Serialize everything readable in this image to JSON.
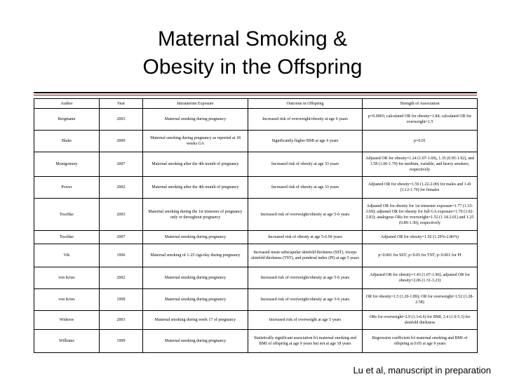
{
  "title": {
    "line1": "Maternal Smoking &",
    "line2": "Obesity in the Offspring"
  },
  "table": {
    "headers": [
      "Author",
      "Year",
      "Intrauterine Exposure",
      "Outcome in Offspring",
      "Strength of Association"
    ],
    "rows": [
      [
        "Bergmann",
        "2003",
        "Maternal smoking during pregnancy",
        "Increased risk of overweight/obesity at age 6 years",
        "p=0.0003; calculated OR for obesity=1.84; calculated OR for overweight=1.5"
      ],
      [
        "Blake",
        "2000",
        "Maternal smoking during pregnancy as reported at 18 weeks GA",
        "Significantly higher BMI at age 6 years",
        "p=0.01"
      ],
      [
        "Montgomery",
        "2007",
        "Maternal smoking after the 4th month of pregnancy",
        "Increased risk of obesity at age 33 years",
        "Adjusted OR for obesity=1.24 (1.07-1.69), 1.35 (0.95-1.92), and 1.58 (1.06-1.79) for medium, variable, and heavy smokers, respectively"
      ],
      [
        "Power",
        "2002",
        "Maternal smoking after the 4th month of pregnancy",
        "Increased risk of obesity at age 33 years",
        "Adjusted OR for obesity=1.56 (1.22-2.00) for males and 1.41 (1.12-1.79) for females"
      ],
      [
        "Toschke",
        "2003",
        "Maternal smoking during the 1st trimester of pregnancy only or throughout pregnancy",
        "Increased risk of overweight/obesity at age 5-6 years",
        "Adjusted OR for obesity for 1st trimester exposure=1.77 (1.33-3.69); adjusted OR for obesity for full GA exposure=1.70 (1.02-2.83); analogous ORs for overweight=1.52 (1.14-2.01) and 1.25 (0.89-1.30), respectively"
      ],
      [
        "Toschke",
        "2007",
        "Maternal smoking during pregnancy",
        "Increased risk of obesity at age 5-6.99 years",
        "Adjusted OR for obesity=1.92 (1.29%-2.86%)"
      ],
      [
        "Vik",
        "1996",
        "Maternal smoking of 1-25 cigs/day during pregnancy",
        "Increased mean subscapular skinfold thickness (SST), triceps skinfold thickness (TST), and ponderal index (PI) at age 5 years",
        "p<0.001 for SST; p<0.05 for TST; p<0.001 for PI"
      ],
      [
        "von Kries",
        "2002",
        "Maternal smoking during pregnancy",
        "Increased risk of overweight/obesity at age 5-6 years",
        "Adjusted OR for obesity=1.43 (1.07-1.90); adjusted OR for obesity=2.06 (1.31-3.23)"
      ],
      [
        "von Kries",
        "1999",
        "Maternal smoking during pregnancy",
        "Increased risk of overweight/obesity at age 5-6 years",
        "OR for obesity=1.5 (1.20-1.89); OR for overweight=1.52 (1.28-2.58)"
      ],
      [
        "Wideroe",
        "2003",
        "Maternal smoking during week 17 of pregnancy",
        "Increased risk of overweight at age 5 years",
        "ORs for overweight=2.9 (1.3-6.6) for BMI, 2.4 (1.0-5.3) for skinfold thickness"
      ],
      [
        "Williams",
        "1999",
        "Maternal smoking during pregnancy",
        "Statistically significant association b/t maternal smoking and BMI of offspring at age 9 years but not at age 18 years",
        "Regression coefficient b/t maternal smoking and BMI of offspring at 0.05 at age 9 years"
      ]
    ]
  },
  "footer": "Lu et al, manuscript in preparation"
}
